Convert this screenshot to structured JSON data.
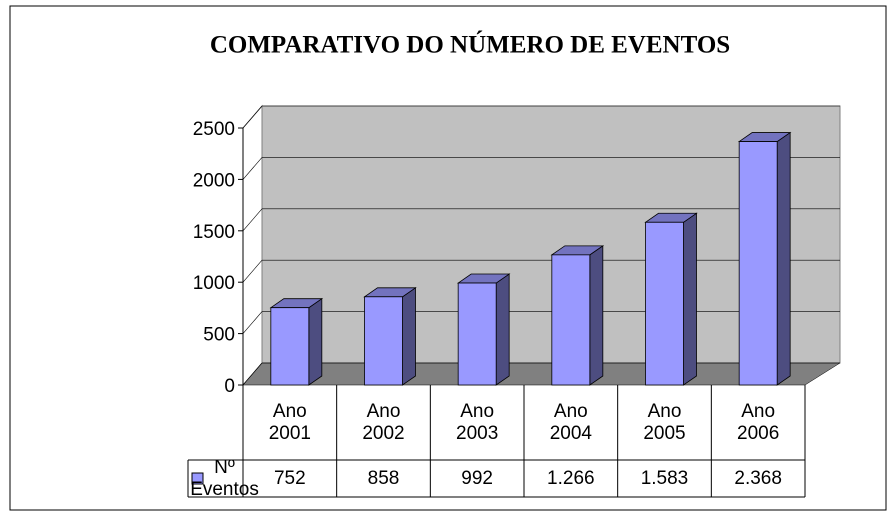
{
  "chart_data": {
    "type": "bar3d",
    "title": "COMPARATIVO DO NÚMERO DE EVENTOS",
    "categories": [
      "Ano 2001",
      "Ano 2002",
      "Ano 2003",
      "Ano 2004",
      "Ano 2005",
      "Ano 2006"
    ],
    "series": [
      {
        "name": "Nº Eventos",
        "color": "#9999ff",
        "values": [
          752,
          858,
          992,
          1266,
          1583,
          2368
        ],
        "value_labels": [
          "752",
          "858",
          "992",
          "1.266",
          "1.583",
          "2.368"
        ]
      }
    ],
    "ylim": [
      0,
      2500
    ],
    "yticks": [
      0,
      500,
      1000,
      1500,
      2000,
      2500
    ],
    "grid": true
  }
}
